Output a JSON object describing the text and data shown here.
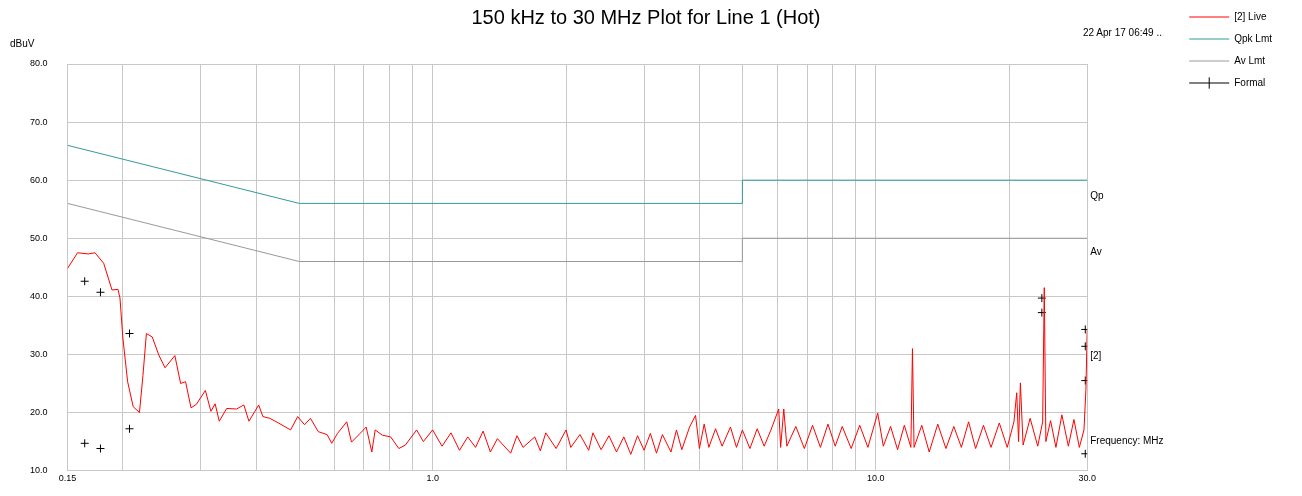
{
  "chart_data": {
    "type": "line",
    "title": "150 kHz to 30 MHz Plot for Line 1 (Hot)",
    "xlabel": "Frequency: MHz",
    "ylabel": "dBuV",
    "annotations": [
      "22 Apr 17 06:49 ..",
      "Qp",
      "Av",
      "[2]"
    ],
    "log": "x",
    "grid": true,
    "legend": "top right",
    "marker": "none",
    "line_style": "solid",
    "xlim": [
      0.15,
      30
    ],
    "ylim": [
      10,
      80
    ],
    "xticks": [
      {
        "value": 0.15,
        "label": "0.15"
      },
      {
        "value": 0.2,
        "label": null
      },
      {
        "value": 0.3,
        "label": null
      },
      {
        "value": 0.4,
        "label": null
      },
      {
        "value": 0.5,
        "label": null
      },
      {
        "value": 0.6,
        "label": null
      },
      {
        "value": 0.7,
        "label": null
      },
      {
        "value": 0.8,
        "label": null
      },
      {
        "value": 0.9,
        "label": null
      },
      {
        "value": 1,
        "label": "1.0"
      },
      {
        "value": 2,
        "label": null
      },
      {
        "value": 3,
        "label": null
      },
      {
        "value": 4,
        "label": null
      },
      {
        "value": 5,
        "label": null
      },
      {
        "value": 6,
        "label": null
      },
      {
        "value": 7,
        "label": null
      },
      {
        "value": 8,
        "label": null
      },
      {
        "value": 9,
        "label": null
      },
      {
        "value": 10,
        "label": "10.0"
      },
      {
        "value": 20,
        "label": null
      },
      {
        "value": 30,
        "label": "30.0"
      }
    ],
    "yticks": [
      {
        "value": 10,
        "label": "10.0"
      },
      {
        "value": 20,
        "label": "20.0"
      },
      {
        "value": 30,
        "label": "30.0"
      },
      {
        "value": 40,
        "label": "40.0"
      },
      {
        "value": 50,
        "label": "50.0"
      },
      {
        "value": 60,
        "label": "60.0"
      },
      {
        "value": 70,
        "label": "70.0"
      },
      {
        "value": 80,
        "label": "80.0"
      }
    ],
    "series": [
      {
        "name": "[2] Live",
        "color": "#ff0000",
        "x": [
          0.15,
          0.158,
          0.167,
          0.173,
          0.181,
          0.189,
          0.195,
          0.197,
          0.2,
          0.205,
          0.211,
          0.218,
          0.222,
          0.226,
          0.233,
          0.241,
          0.249,
          0.262,
          0.27,
          0.277,
          0.285,
          0.293,
          0.307,
          0.316,
          0.323,
          0.33,
          0.343,
          0.361,
          0.375,
          0.385,
          0.405,
          0.414,
          0.429,
          0.449,
          0.478,
          0.496,
          0.514,
          0.53,
          0.552,
          0.578,
          0.592,
          0.61,
          0.64,
          0.656,
          0.686,
          0.708,
          0.729,
          0.742,
          0.77,
          0.804,
          0.839,
          0.868,
          0.92,
          0.953,
          1.0,
          1.05,
          1.1,
          1.15,
          1.2,
          1.25,
          1.3,
          1.35,
          1.4,
          1.5,
          1.55,
          1.6,
          1.7,
          1.75,
          1.8,
          1.9,
          2.0,
          2.05,
          2.15,
          2.25,
          2.3,
          2.4,
          2.5,
          2.6,
          2.7,
          2.8,
          2.9,
          3.0,
          3.1,
          3.2,
          3.3,
          3.45,
          3.55,
          3.65,
          3.8,
          3.92,
          4.0,
          4.1,
          4.2,
          4.35,
          4.5,
          4.7,
          4.85,
          5.0,
          5.2,
          5.4,
          5.6,
          5.8,
          6.04,
          6.1,
          6.2,
          6.3,
          6.6,
          6.9,
          7.2,
          7.5,
          7.8,
          8.1,
          8.4,
          8.8,
          9.2,
          9.6,
          10.1,
          10.4,
          10.8,
          11.2,
          11.6,
          12.0,
          12.1,
          12.2,
          12.7,
          13.2,
          13.8,
          14.4,
          15.0,
          15.6,
          16.2,
          16.8,
          17.5,
          18.2,
          19.0,
          19.8,
          20.5,
          20.8,
          21.0,
          21.2,
          21.5,
          22.3,
          23.2,
          23.8,
          24.0,
          24.2,
          24.8,
          25.5,
          26.3,
          27.2,
          28.0,
          28.8,
          29.5,
          29.8,
          30.0
        ],
        "values": [
          44.8,
          47.5,
          47.3,
          47.5,
          45.7,
          41.1,
          41.2,
          39.7,
          32.8,
          25.3,
          21.0,
          20.0,
          26.4,
          33.6,
          33.0,
          29.9,
          27.7,
          29.8,
          25.0,
          25.3,
          20.8,
          21.4,
          23.8,
          20.2,
          21.5,
          18.5,
          20.7,
          20.6,
          21.3,
          18.5,
          21.3,
          19.3,
          19.0,
          18.2,
          17.0,
          19.3,
          17.9,
          19.0,
          16.7,
          16.2,
          14.7,
          16.4,
          18.4,
          14.9,
          16.4,
          17.5,
          13.2,
          17.0,
          16.1,
          15.8,
          13.8,
          14.4,
          17.0,
          15.0,
          17.0,
          14.2,
          16.5,
          13.5,
          15.8,
          14.0,
          16.8,
          13.2,
          15.5,
          13.0,
          16.0,
          14.0,
          15.8,
          13.4,
          16.5,
          13.8,
          17.0,
          14.0,
          16.2,
          13.5,
          16.5,
          13.6,
          16.0,
          13.2,
          15.8,
          12.8,
          16.0,
          13.5,
          16.4,
          13.0,
          16.2,
          13.2,
          17.0,
          13.6,
          17.5,
          19.5,
          13.8,
          18.0,
          14.0,
          17.2,
          14.2,
          17.5,
          14.0,
          17.0,
          13.8,
          17.2,
          14.2,
          17.0,
          20.6,
          14.0,
          20.6,
          14.2,
          17.6,
          13.8,
          17.8,
          14.0,
          18.0,
          14.2,
          17.6,
          13.8,
          17.8,
          14.0,
          19.9,
          14.2,
          17.6,
          13.6,
          17.8,
          14.0,
          31.0,
          14.0,
          17.8,
          13.2,
          18.0,
          13.8,
          17.6,
          14.0,
          18.4,
          13.8,
          17.8,
          14.0,
          18.2,
          14.0,
          18.4,
          23.4,
          15.0,
          25.1,
          14.4,
          19.0,
          14.2,
          18.4,
          41.5,
          15.0,
          18.6,
          14.0,
          19.6,
          14.2,
          18.8,
          14.0,
          17.0,
          24.0,
          34.3
        ]
      },
      {
        "name": "Qpk Lmt",
        "color": "#339999",
        "x": [
          0.15,
          0.5,
          5,
          5,
          30
        ],
        "values": [
          66,
          56,
          56,
          60,
          60
        ]
      },
      {
        "name": "Av Lmt",
        "color": "#999999",
        "x": [
          0.15,
          0.5,
          5,
          5,
          30
        ],
        "values": [
          56,
          46,
          46,
          50,
          50
        ]
      },
      {
        "name": "Formal",
        "type": "scatter",
        "marker": "cross",
        "color": "#000000",
        "x": [
          0.164,
          0.178,
          0.207,
          0.164,
          0.178,
          0.207,
          23.7,
          23.7,
          29.7,
          29.7,
          29.7,
          29.7
        ],
        "values": [
          42.6,
          40.7,
          33.6,
          14.7,
          13.8,
          17.2,
          39.7,
          37.2,
          34.3,
          31.4,
          25.5,
          12.9
        ]
      }
    ]
  }
}
